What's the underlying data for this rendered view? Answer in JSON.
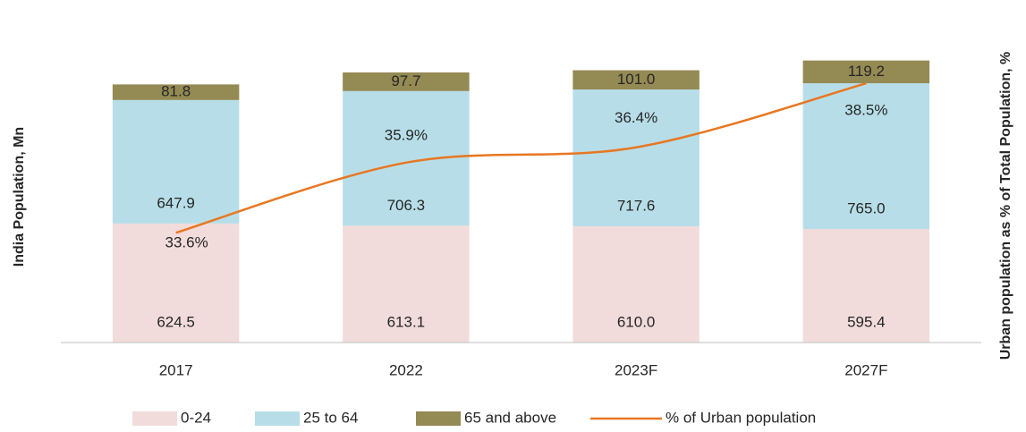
{
  "chart_data": {
    "type": "bar",
    "categories": [
      "2017",
      "2022",
      "2023F",
      "2027F"
    ],
    "y_label": "India Population, Mn",
    "y2_label": "Urban population as % of Total Population, %",
    "ylim": [
      0,
      1600
    ],
    "y2lim": [
      30,
      40
    ],
    "legend": "bottom",
    "series": [
      {
        "name": "0-24",
        "type": "bar",
        "color": "#f2dcdb",
        "values": [
          624.5,
          613.1,
          610.0,
          595.4
        ],
        "value_labels": [
          "624.5",
          "613.1",
          "610.0",
          "595.4"
        ]
      },
      {
        "name": "25 to 64",
        "type": "bar",
        "color": "#b7dee8",
        "values": [
          647.9,
          706.3,
          717.6,
          765.0
        ],
        "value_labels": [
          "647.9",
          "706.3",
          "717.6",
          "765.0"
        ]
      },
      {
        "name": "65 and above",
        "type": "bar",
        "color": "#948a54",
        "values": [
          81.8,
          97.7,
          101.0,
          119.2
        ],
        "value_labels": [
          "81.8",
          "97.7",
          "101.0",
          "119.2"
        ]
      },
      {
        "name": "% of Urban population",
        "type": "line",
        "axis": "y2",
        "color": "#e87722",
        "values": [
          33.6,
          35.9,
          36.4,
          38.5
        ],
        "value_labels": [
          "33.6%",
          "35.9%",
          "36.4%",
          "38.5%"
        ]
      }
    ]
  }
}
